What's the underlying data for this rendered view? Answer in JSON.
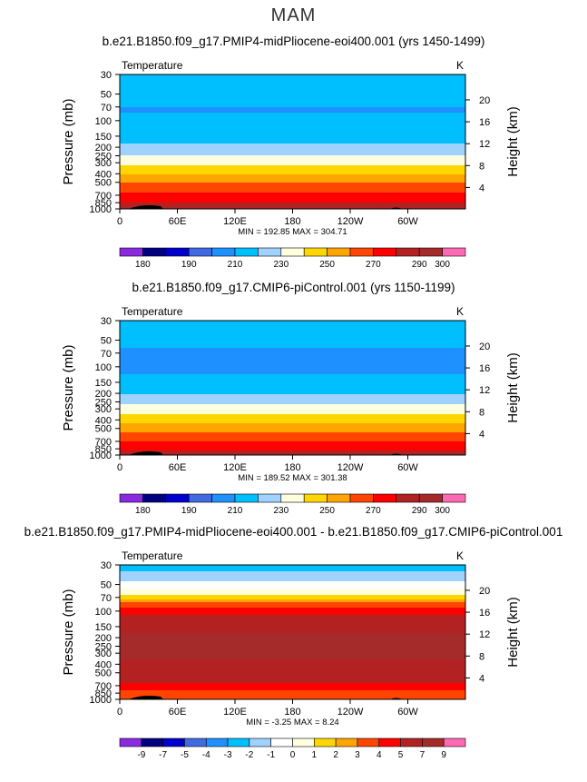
{
  "figure": {
    "title": "MAM",
    "colors": {
      "abs": [
        "#8a2be2",
        "#000080",
        "#0000cd",
        "#4169e1",
        "#1e90ff",
        "#00bfff",
        "#a0d2ff",
        "#ffffe0",
        "#ffd700",
        "#ffa500",
        "#ff4500",
        "#ff0000",
        "#b22222",
        "#a52a2a",
        "#ff69b4"
      ],
      "diff": [
        "#8a2be2",
        "#000080",
        "#0000cd",
        "#4169e1",
        "#1e90ff",
        "#00bfff",
        "#a0d2ff",
        "#ffffff",
        "#ffffe0",
        "#ffd700",
        "#ffa500",
        "#ff4500",
        "#ff0000",
        "#b22222",
        "#a52a2a",
        "#ff69b4"
      ],
      "land": "#000000"
    }
  },
  "chart_data": [
    {
      "type": "heatmap",
      "title": "b.e21.B1850.f09_g17.PMIP4-midPliocene-eoi400.001 (yrs 1450-1499)",
      "variable": "Temperature",
      "units": "K",
      "ylabel": "Pressure  (mb)",
      "ylabel_right": "Height  (km)",
      "xticks": [
        "0",
        "60E",
        "120E",
        "180",
        "120W",
        "60W"
      ],
      "yticks": [
        30,
        50,
        70,
        100,
        150,
        200,
        250,
        300,
        400,
        500,
        700,
        850,
        1000
      ],
      "yticks_right": [
        20,
        16,
        12,
        8,
        4
      ],
      "ylim": [
        1000,
        30
      ],
      "yscale": "log",
      "stats_label": "MIN = 192.85   MAX = 304.71",
      "min": 192.85,
      "max": 304.71,
      "colorbar_labels": [
        "180",
        "190",
        "210",
        "230",
        "250",
        "270",
        "290",
        "300"
      ],
      "profile": {
        "pressure": [
          30,
          40,
          50,
          60,
          70,
          80,
          100,
          120,
          150,
          170,
          200,
          230,
          250,
          270,
          300,
          350,
          400,
          450,
          500,
          600,
          700,
          800,
          850,
          925,
          1000
        ],
        "temperature": [
          216,
          214,
          212,
          211,
          210,
          210,
          211,
          213,
          216,
          219,
          223,
          227,
          231,
          235,
          238,
          244,
          250,
          255,
          260,
          267,
          273,
          278,
          281,
          285,
          289
        ]
      }
    },
    {
      "type": "heatmap",
      "title": "b.e21.B1850.f09_g17.CMIP6-piControl.001 (yrs 1150-1199)",
      "variable": "Temperature",
      "units": "K",
      "ylabel": "Pressure  (mb)",
      "ylabel_right": "Height  (km)",
      "xticks": [
        "0",
        "60E",
        "120E",
        "180",
        "120W",
        "60W"
      ],
      "yticks": [
        30,
        50,
        70,
        100,
        150,
        200,
        250,
        300,
        400,
        500,
        700,
        850,
        1000
      ],
      "yticks_right": [
        20,
        16,
        12,
        8,
        4
      ],
      "ylim": [
        1000,
        30
      ],
      "yscale": "log",
      "stats_label": "MIN = 189.52   MAX = 301.38",
      "min": 189.52,
      "max": 301.38,
      "colorbar_labels": [
        "180",
        "190",
        "210",
        "230",
        "250",
        "270",
        "290",
        "300"
      ],
      "profile": {
        "pressure": [
          30,
          40,
          50,
          60,
          70,
          80,
          100,
          120,
          150,
          170,
          200,
          230,
          250,
          270,
          300,
          350,
          400,
          450,
          500,
          600,
          700,
          800,
          850,
          925,
          1000
        ],
        "temperature": [
          215,
          213,
          211,
          210,
          209,
          208,
          208,
          210,
          213,
          216,
          220,
          224,
          228,
          232,
          235,
          241,
          247,
          252,
          257,
          264,
          270,
          275,
          278,
          282,
          286
        ]
      }
    },
    {
      "type": "heatmap",
      "title": "b.e21.B1850.f09_g17.PMIP4-midPliocene-eoi400.001 - b.e21.B1850.f09_g17.CMIP6-piControl.001",
      "variable": "Temperature",
      "units": "K",
      "ylabel": "Pressure  (mb)",
      "ylabel_right": "Height  (km)",
      "xticks": [
        "0",
        "60E",
        "120E",
        "180",
        "120W",
        "60W"
      ],
      "yticks": [
        30,
        50,
        70,
        100,
        150,
        200,
        250,
        300,
        400,
        500,
        700,
        850,
        1000
      ],
      "yticks_right": [
        20,
        16,
        12,
        8,
        4
      ],
      "ylim": [
        1000,
        30
      ],
      "yscale": "log",
      "stats_label": "MIN =  -3.25   MAX =   8.24",
      "min": -3.25,
      "max": 8.24,
      "colorbar_labels": [
        "-9",
        "-7",
        "-5",
        "-4",
        "-3",
        "-2",
        "-1",
        "0",
        "1",
        "2",
        "3",
        "4",
        "5",
        "7",
        "9"
      ],
      "profile": {
        "pressure": [
          30,
          40,
          50,
          60,
          70,
          80,
          100,
          120,
          150,
          200,
          300,
          400,
          500,
          600,
          700,
          850,
          1000
        ],
        "difference": [
          -2.5,
          -1.5,
          -0.5,
          0.5,
          1.5,
          3.5,
          4.5,
          5.5,
          6.5,
          7.5,
          7.5,
          6.5,
          5.5,
          5.5,
          4.5,
          3.5,
          3.5
        ]
      }
    }
  ]
}
